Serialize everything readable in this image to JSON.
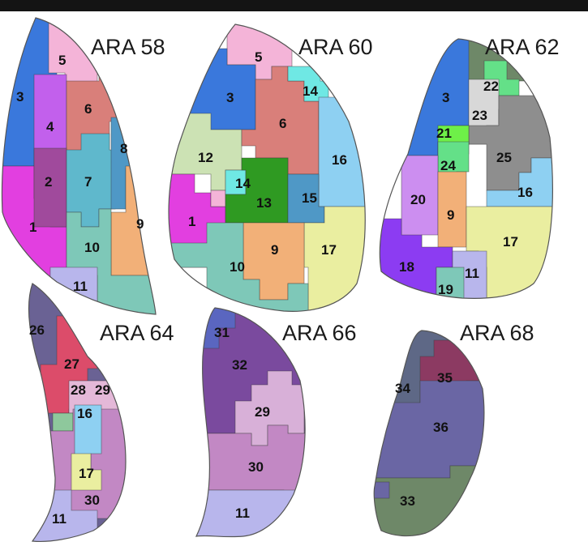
{
  "panels": [
    {
      "title": "ARA 58",
      "regions": [
        {
          "label": "1",
          "color": "#e23fe0"
        },
        {
          "label": "2",
          "color": "#a04a9c"
        },
        {
          "label": "3",
          "color": "#3a78dc"
        },
        {
          "label": "4",
          "color": "#c260ec"
        },
        {
          "label": "5",
          "color": "#f4b4d8"
        },
        {
          "label": "6",
          "color": "#d97f7a"
        },
        {
          "label": "7",
          "color": "#5fb8cc"
        },
        {
          "label": "8",
          "color": "#4f98c6"
        },
        {
          "label": "9",
          "color": "#f2b078"
        },
        {
          "label": "10",
          "color": "#7ec8b8"
        },
        {
          "label": "11",
          "color": "#b8b6ec"
        }
      ]
    },
    {
      "title": "ARA 60",
      "regions": [
        {
          "label": "1",
          "color": "#e23fe0"
        },
        {
          "label": "3",
          "color": "#3a78dc"
        },
        {
          "label": "5",
          "color": "#f4b4d8"
        },
        {
          "label": "6",
          "color": "#d97f7a"
        },
        {
          "label": "9",
          "color": "#f2b078"
        },
        {
          "label": "10",
          "color": "#7ec8b8"
        },
        {
          "label": "12",
          "color": "#cce2b4"
        },
        {
          "label": "13",
          "color": "#2f9a22"
        },
        {
          "label": "14",
          "color": "#6fe8e4"
        },
        {
          "label": "14",
          "color": "#6fe8e4"
        },
        {
          "label": "15",
          "color": "#4f98c6"
        },
        {
          "label": "16",
          "color": "#8ed0f2"
        },
        {
          "label": "17",
          "color": "#eaeea0"
        }
      ]
    },
    {
      "title": "ARA 62",
      "regions": [
        {
          "label": "3",
          "color": "#3a78dc"
        },
        {
          "label": "9",
          "color": "#f2b078"
        },
        {
          "label": "11",
          "color": "#b8b6ec"
        },
        {
          "label": "16",
          "color": "#8ed0f2"
        },
        {
          "label": "17",
          "color": "#eaeea0"
        },
        {
          "label": "18",
          "color": "#8c3cf2"
        },
        {
          "label": "19",
          "color": "#7ec8b8"
        },
        {
          "label": "20",
          "color": "#cc8ef0"
        },
        {
          "label": "21",
          "color": "#6ef048"
        },
        {
          "label": "22",
          "color": "#64e088"
        },
        {
          "label": "23",
          "color": "#d8d8d8"
        },
        {
          "label": "24",
          "color": "#64e088"
        },
        {
          "label": "25",
          "color": "#8e8e8e"
        }
      ]
    },
    {
      "title": "ARA 64",
      "regions": [
        {
          "label": "11",
          "color": "#b8b6ec"
        },
        {
          "label": "16",
          "color": "#8ed0f2"
        },
        {
          "label": "17",
          "color": "#eaeea0"
        },
        {
          "label": "26",
          "color": "#6a6294"
        },
        {
          "label": "27",
          "color": "#dc4c6a"
        },
        {
          "label": "28",
          "color": "#e4b8d8"
        },
        {
          "label": "29",
          "color": "#e4b8d8"
        },
        {
          "label": "30",
          "color": "#c288c4"
        }
      ]
    },
    {
      "title": "ARA 66",
      "regions": [
        {
          "label": "11",
          "color": "#b8b6ec"
        },
        {
          "label": "29",
          "color": "#d8b0d8"
        },
        {
          "label": "30",
          "color": "#c288c4"
        },
        {
          "label": "31",
          "color": "#5a66c0"
        },
        {
          "label": "32",
          "color": "#7a4a9e"
        }
      ]
    },
    {
      "title": "ARA 68",
      "regions": [
        {
          "label": "33",
          "color": "#6e8868"
        },
        {
          "label": "34",
          "color": "#5e6886"
        },
        {
          "label": "35",
          "color": "#8c3a62"
        },
        {
          "label": "36",
          "color": "#6a66a4"
        }
      ]
    }
  ]
}
